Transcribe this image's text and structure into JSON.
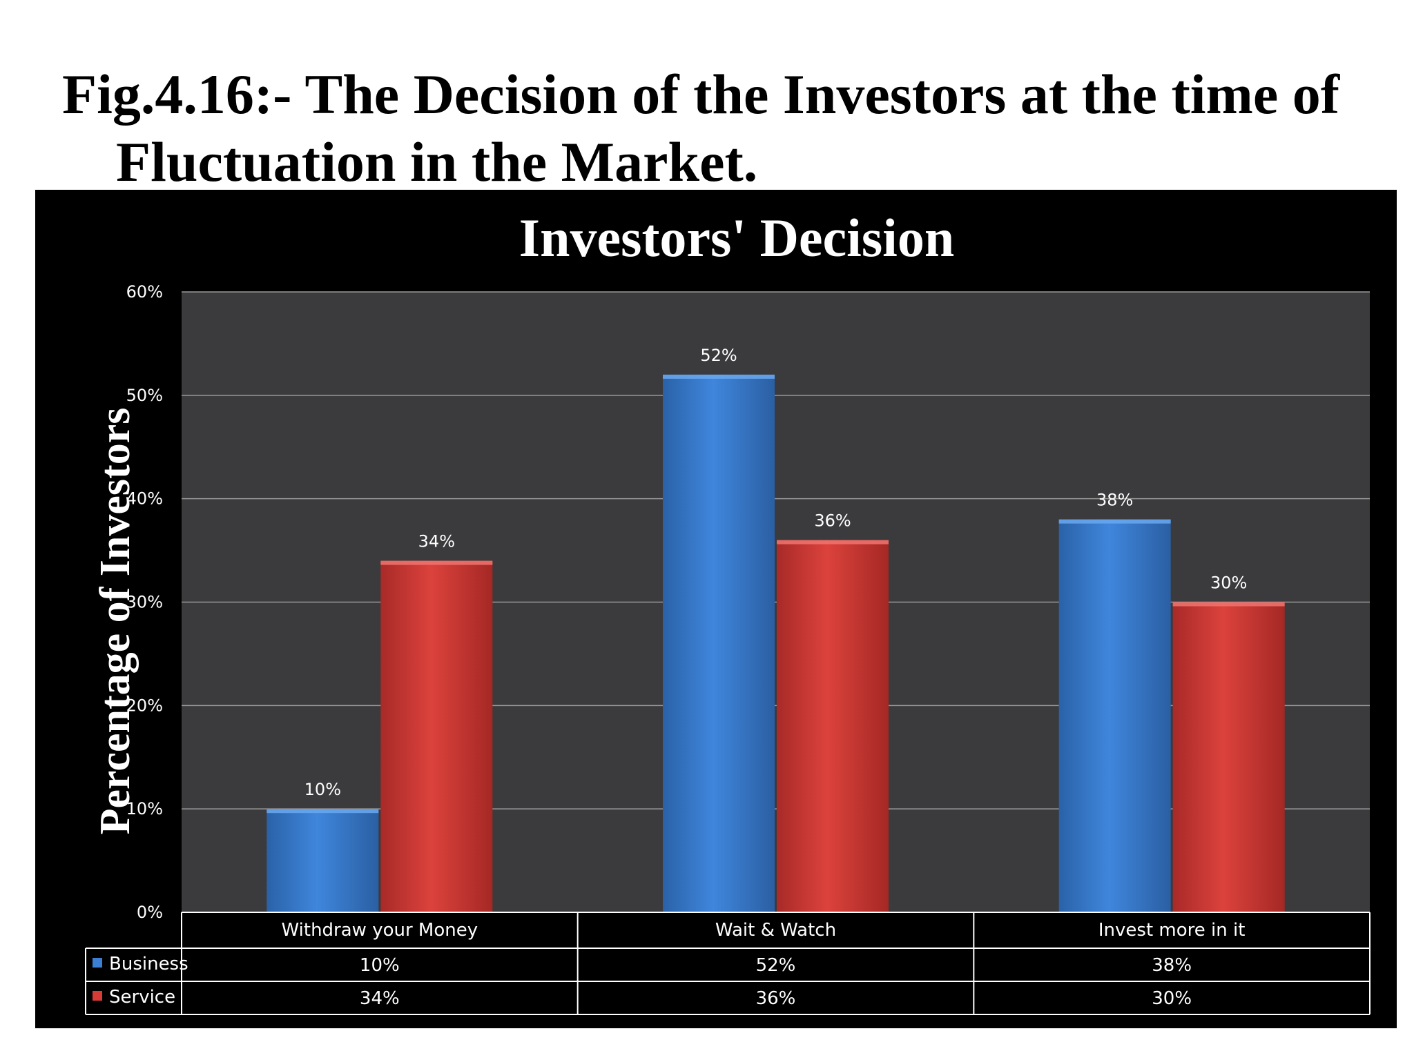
{
  "figure": {
    "title_line1": "Fig.4.16:- The Decision of the Investors at the time of",
    "title_line2": "Fluctuation in the Market."
  },
  "colors": {
    "background": "#000000",
    "plot_area": "#3b3a3c",
    "business": "#3a7fd4",
    "service": "#d63b36",
    "grid": "#9a9a9a"
  },
  "chart_data": {
    "type": "bar",
    "title": "Investors' Decision",
    "xlabel": "",
    "ylabel": "Percentage of Investors",
    "categories": [
      "Withdraw your Money",
      "Wait & Watch",
      "Invest more in it"
    ],
    "series": [
      {
        "name": "Business",
        "values": [
          10,
          52,
          38
        ],
        "labels": [
          "10%",
          "52%",
          "38%"
        ]
      },
      {
        "name": "Service",
        "values": [
          34,
          36,
          30
        ],
        "labels": [
          "34%",
          "36%",
          "30%"
        ]
      }
    ],
    "ylim": [
      0,
      60
    ],
    "yticks": [
      0,
      10,
      20,
      30,
      40,
      50,
      60
    ],
    "ytick_labels": [
      "0%",
      "10%",
      "20%",
      "30%",
      "40%",
      "50%",
      "60%"
    ],
    "grid": true,
    "legend": "data-table"
  }
}
